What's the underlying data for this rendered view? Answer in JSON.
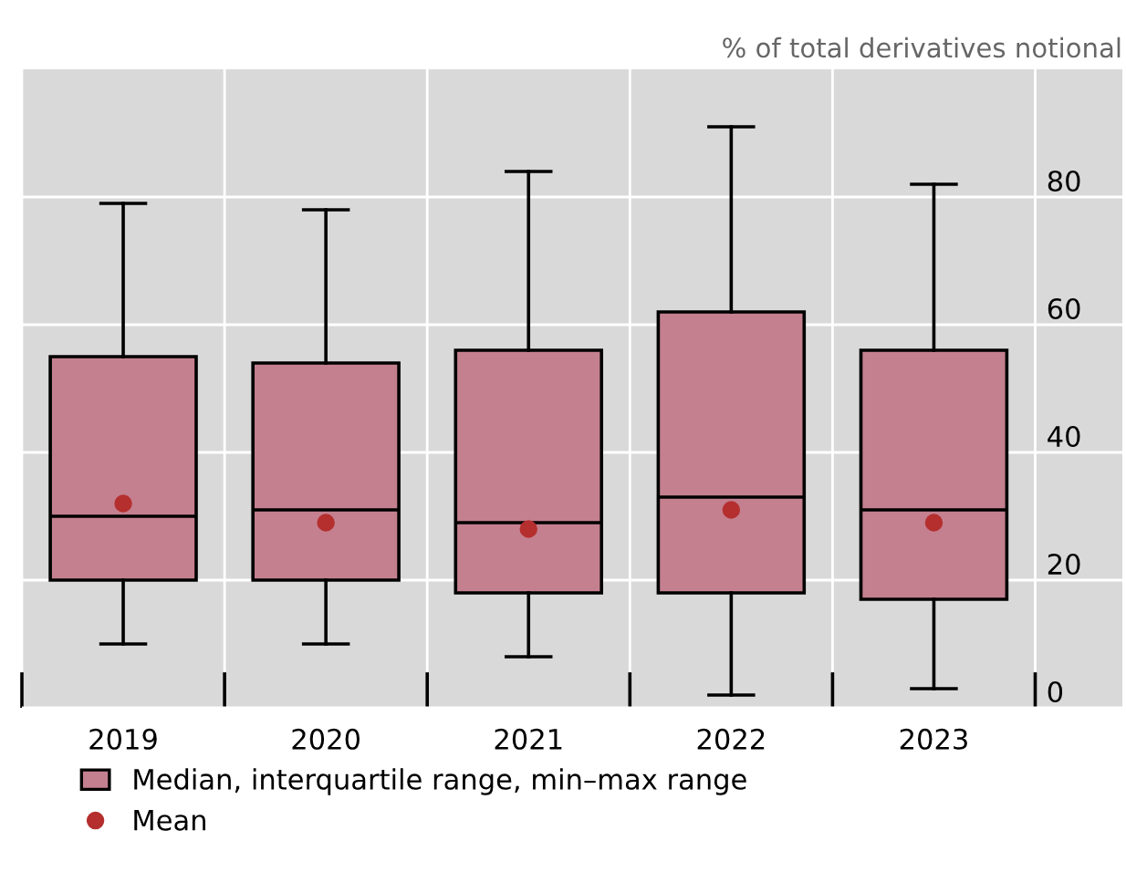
{
  "chart_data": {
    "type": "box",
    "ylabel": "% of total derivatives notional",
    "categories": [
      "2019",
      "2020",
      "2021",
      "2022",
      "2023"
    ],
    "series": [
      {
        "name": "Median, interquartile range, min–max range",
        "color": "#c4808f",
        "boxes": [
          {
            "low": 10,
            "q1": 20,
            "median": 30,
            "q3": 55,
            "high": 79
          },
          {
            "low": 10,
            "q1": 20,
            "median": 31,
            "q3": 54,
            "high": 78
          },
          {
            "low": 8,
            "q1": 18,
            "median": 29,
            "q3": 56,
            "high": 84
          },
          {
            "low": 2,
            "q1": 18,
            "median": 33,
            "q3": 62,
            "high": 91
          },
          {
            "low": 3,
            "q1": 17,
            "median": 31,
            "q3": 56,
            "high": 82
          }
        ]
      },
      {
        "type": "scatter",
        "name": "Mean",
        "color": "#b52f2f",
        "values": [
          32,
          29,
          28,
          31,
          29
        ]
      }
    ],
    "ylim": [
      0,
      100
    ],
    "yticks": [
      0,
      20,
      40,
      60,
      80
    ],
    "grid": true,
    "legend": "bottom",
    "marker": "circle"
  }
}
